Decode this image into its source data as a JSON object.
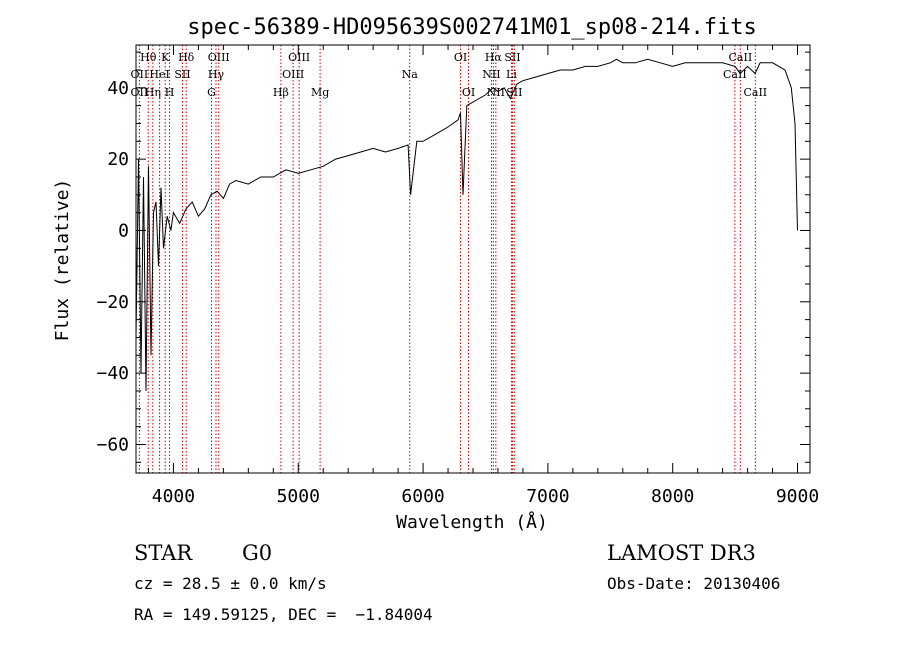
{
  "chart_data": {
    "type": "line",
    "title": "spec-56389-HD095639S002741M01_sp08-214.fits",
    "xlabel": "Wavelength (Å)",
    "ylabel": "Flux (relative)",
    "xlim": [
      3700,
      9100
    ],
    "ylim": [
      -68,
      52
    ],
    "x_ticks": [
      4000,
      5000,
      6000,
      7000,
      8000,
      9000
    ],
    "y_ticks": [
      -60,
      -40,
      -20,
      0,
      20,
      40
    ],
    "x_tick_labels": [
      "4000",
      "5000",
      "6000",
      "7000",
      "8000",
      "9000"
    ],
    "y_tick_labels": [
      "−60",
      "−40",
      "−20",
      "0",
      "20",
      "40"
    ],
    "grid": false,
    "series_color": "#000000",
    "line_color": "#cc0000",
    "series": [
      {
        "x": [
          3700,
          3720,
          3740,
          3760,
          3780,
          3800,
          3820,
          3840,
          3860,
          3880,
          3900,
          3920,
          3950,
          3980,
          4000,
          4050,
          4100,
          4150,
          4200,
          4250,
          4300,
          4350,
          4400,
          4450,
          4500,
          4600,
          4700,
          4800,
          4900,
          5000,
          5100,
          5200,
          5300,
          5400,
          5500,
          5600,
          5700,
          5800,
          5880,
          5900,
          5950,
          6000,
          6100,
          6200,
          6280,
          6300,
          6320,
          6350,
          6400,
          6450,
          6500,
          6560,
          6600,
          6650,
          6700,
          6750,
          6800,
          6900,
          7000,
          7100,
          7200,
          7300,
          7400,
          7500,
          7550,
          7600,
          7700,
          7800,
          7900,
          8000,
          8100,
          8200,
          8300,
          8400,
          8500,
          8540,
          8600,
          8660,
          8700,
          8800,
          8900,
          8950,
          8980,
          9000
        ],
        "y": [
          -30,
          20,
          -40,
          15,
          -45,
          18,
          -35,
          5,
          8,
          -10,
          12,
          -5,
          4,
          0,
          5,
          2,
          6,
          8,
          4,
          6,
          10,
          11,
          9,
          13,
          14,
          13,
          15,
          15,
          17,
          16,
          17,
          18,
          20,
          21,
          22,
          23,
          22,
          23,
          24,
          10,
          25,
          25,
          27,
          29,
          31,
          33,
          10,
          35,
          36,
          37,
          38,
          40,
          39,
          40,
          37,
          41,
          42,
          43,
          44,
          45,
          45,
          46,
          46,
          47,
          48,
          47,
          47,
          48,
          47,
          46,
          47,
          47,
          47,
          47,
          46,
          44,
          46,
          44,
          47,
          47,
          45,
          40,
          30,
          0
        ]
      }
    ],
    "lines": [
      {
        "name": "Hθ",
        "x": 3798,
        "row": 1
      },
      {
        "name": "OII",
        "x": 3727,
        "row": 2
      },
      {
        "name": "OII",
        "x": 3727,
        "row": 3
      },
      {
        "name": "Hη",
        "x": 3835,
        "row": 3
      },
      {
        "name": "HeI",
        "x": 3889,
        "row": 2
      },
      {
        "name": "K",
        "x": 3934,
        "row": 1
      },
      {
        "name": "H",
        "x": 3969,
        "row": 3
      },
      {
        "name": "SII",
        "x": 4072,
        "row": 2
      },
      {
        "name": "Hδ",
        "x": 4102,
        "row": 1
      },
      {
        "name": "OIII",
        "x": 4363,
        "row": 1
      },
      {
        "name": "Hγ",
        "x": 4341,
        "row": 2
      },
      {
        "name": "G",
        "x": 4305,
        "row": 3
      },
      {
        "name": "OIII",
        "x": 5007,
        "row": 1
      },
      {
        "name": "OIII",
        "x": 4959,
        "row": 2
      },
      {
        "name": "Hβ",
        "x": 4861,
        "row": 3
      },
      {
        "name": "Mg",
        "x": 5175,
        "row": 3
      },
      {
        "name": "Na",
        "x": 5893,
        "row": 2
      },
      {
        "name": "OI",
        "x": 6300,
        "row": 1
      },
      {
        "name": "OI",
        "x": 6364,
        "row": 3
      },
      {
        "name": "Hα",
        "x": 6563,
        "row": 1
      },
      {
        "name": "SII",
        "x": 6716,
        "row": 1
      },
      {
        "name": "NII",
        "x": 6548,
        "row": 2
      },
      {
        "name": "Li",
        "x": 6708,
        "row": 2
      },
      {
        "name": "NII",
        "x": 6583,
        "row": 3
      },
      {
        "name": "SII",
        "x": 6731,
        "row": 3
      },
      {
        "name": "CaII",
        "x": 8542,
        "row": 1
      },
      {
        "name": "CaII",
        "x": 8498,
        "row": 2
      },
      {
        "name": "CaII",
        "x": 8662,
        "row": 3
      }
    ]
  },
  "info": {
    "class": "STAR",
    "subclass": "G0",
    "survey": "LAMOST DR3",
    "cz": "cz = 28.5 ± 0.0 km/s",
    "obs_date": "Obs-Date: 20130406",
    "coords": "RA = 149.59125, DEC =  −1.84004"
  }
}
